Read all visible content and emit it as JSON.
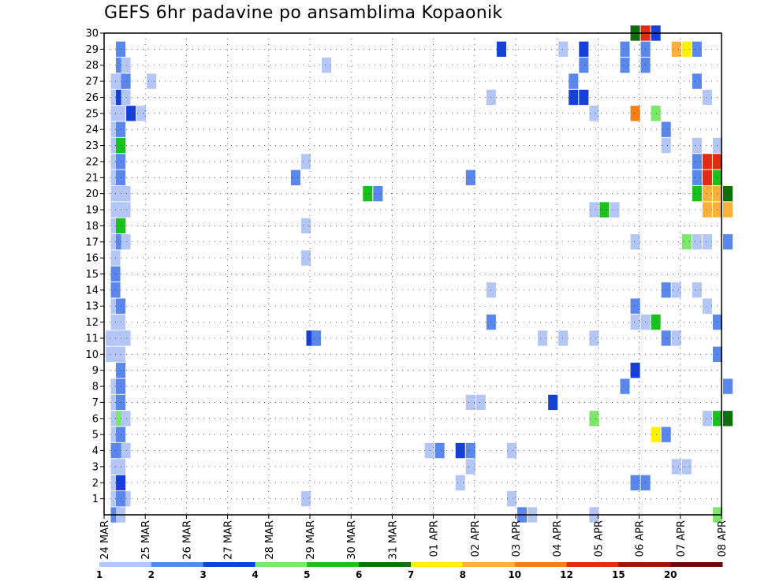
{
  "chart_data": {
    "type": "heatmap",
    "title": "GEFS 6hr padavine po ansamblima Kopaonik",
    "xlabel": "",
    "ylabel": "",
    "x_ticks": [
      "24 MAR",
      "25 MAR",
      "26 MAR",
      "27 MAR",
      "28 MAR",
      "29 MAR",
      "30 MAR",
      "31 MAR",
      "01 APR",
      "02 APR",
      "03 APR",
      "04 APR",
      "05 APR",
      "06 APR",
      "07 APR",
      "08 APR"
    ],
    "y_ticks": [
      "1",
      "2",
      "3",
      "4",
      "5",
      "6",
      "7",
      "8",
      "9",
      "10",
      "11",
      "12",
      "13",
      "14",
      "15",
      "16",
      "17",
      "18",
      "19",
      "20",
      "21",
      "22",
      "23",
      "24",
      "25",
      "26",
      "27",
      "28",
      "29",
      "30"
    ],
    "x_range": [
      0,
      60
    ],
    "y_range": [
      0,
      30
    ],
    "x_step_hours": 6,
    "grid": true,
    "color_levels": [
      "1",
      "2",
      "3",
      "4",
      "5",
      "6",
      "7",
      "8",
      "10",
      "12",
      "15",
      "20"
    ],
    "colors": [
      "#b3c6f5",
      "#5a87ec",
      "#1540d8",
      "#7ce86a",
      "#1cc01c",
      "#0d700d",
      "#fff200",
      "#fbb03b",
      "#f57f17",
      "#e32b13",
      "#a31212",
      "#6a0a0a"
    ],
    "cells": [
      [
        0.5,
        0,
        2
      ],
      [
        1,
        0,
        1
      ],
      [
        0.5,
        1,
        2
      ],
      [
        1,
        1,
        1
      ],
      [
        0.5,
        1,
        1
      ],
      [
        1,
        1,
        1
      ],
      [
        1.5,
        1,
        1
      ],
      [
        0.5,
        2,
        1
      ],
      [
        0.5,
        3,
        1
      ],
      [
        0.5,
        4,
        2
      ],
      [
        0.5,
        5,
        1
      ],
      [
        0.5,
        6,
        1
      ],
      [
        0.5,
        7,
        1
      ],
      [
        0.5,
        8,
        1
      ],
      [
        0,
        10,
        1
      ],
      [
        0.5,
        10,
        1
      ],
      [
        0,
        11,
        1
      ],
      [
        0.5,
        11,
        1
      ],
      [
        0.5,
        12,
        1
      ],
      [
        0.5,
        13,
        1
      ],
      [
        0.5,
        14,
        2
      ],
      [
        0.5,
        15,
        2
      ],
      [
        0.5,
        16,
        1
      ],
      [
        0.5,
        17,
        1
      ],
      [
        0.5,
        18,
        1
      ],
      [
        0.5,
        19,
        1
      ],
      [
        0.5,
        20,
        1
      ],
      [
        0.5,
        21,
        1
      ],
      [
        0.5,
        22,
        1
      ],
      [
        0.5,
        23,
        1
      ],
      [
        0.5,
        24,
        1
      ],
      [
        0.5,
        25,
        1
      ],
      [
        0.5,
        26,
        1
      ],
      [
        0.5,
        27,
        1
      ],
      [
        1,
        1,
        2
      ],
      [
        1,
        2,
        3
      ],
      [
        1,
        3,
        1
      ],
      [
        1,
        4,
        2
      ],
      [
        1,
        5,
        2
      ],
      [
        1,
        6,
        4
      ],
      [
        1,
        7,
        2
      ],
      [
        1,
        8,
        2
      ],
      [
        1,
        9,
        2
      ],
      [
        1,
        10,
        1
      ],
      [
        1,
        11,
        1
      ],
      [
        1,
        12,
        1
      ],
      [
        1,
        13,
        2
      ],
      [
        1,
        17,
        2
      ],
      [
        1,
        18,
        5
      ],
      [
        1,
        19,
        1
      ],
      [
        1,
        20,
        1
      ],
      [
        1,
        21,
        2
      ],
      [
        1,
        22,
        2
      ],
      [
        1,
        23,
        5
      ],
      [
        1,
        24,
        2
      ],
      [
        1,
        25,
        1
      ],
      [
        1,
        26,
        3
      ],
      [
        1,
        27,
        1
      ],
      [
        1,
        28,
        2
      ],
      [
        1,
        29,
        2
      ],
      [
        1.5,
        4,
        1
      ],
      [
        1.5,
        6,
        1
      ],
      [
        1.5,
        11,
        1
      ],
      [
        1.5,
        17,
        1
      ],
      [
        1.5,
        19,
        1
      ],
      [
        1.5,
        20,
        1
      ],
      [
        1.5,
        26,
        1
      ],
      [
        1.5,
        27,
        2
      ],
      [
        1.5,
        28,
        1
      ],
      [
        2,
        25,
        3
      ],
      [
        3,
        25,
        1
      ],
      [
        4,
        27,
        1
      ],
      [
        18,
        21,
        2
      ],
      [
        19,
        22,
        1
      ],
      [
        19,
        18,
        1
      ],
      [
        19,
        16,
        1
      ],
      [
        19,
        1,
        1
      ],
      [
        19.5,
        11,
        3
      ],
      [
        20,
        11,
        2
      ],
      [
        21,
        28,
        1
      ],
      [
        25,
        20,
        5
      ],
      [
        26,
        20,
        2
      ],
      [
        31,
        4,
        1
      ],
      [
        32,
        4,
        2
      ],
      [
        34,
        4,
        3
      ],
      [
        35,
        4,
        2
      ],
      [
        34,
        2,
        1
      ],
      [
        35,
        3,
        1
      ],
      [
        35,
        7,
        1
      ],
      [
        36,
        7,
        1
      ],
      [
        35,
        21,
        2
      ],
      [
        37,
        12,
        2
      ],
      [
        37,
        14,
        1
      ],
      [
        37,
        26,
        1
      ],
      [
        38,
        29,
        3
      ],
      [
        39,
        1,
        1
      ],
      [
        39,
        4,
        1
      ],
      [
        40,
        0,
        2
      ],
      [
        41,
        0,
        1
      ],
      [
        42,
        11,
        1
      ],
      [
        43,
        7,
        3
      ],
      [
        44,
        11,
        1
      ],
      [
        44,
        29,
        1
      ],
      [
        45,
        26,
        3
      ],
      [
        46,
        26,
        3
      ],
      [
        45,
        27,
        2
      ],
      [
        46,
        28,
        2
      ],
      [
        46,
        29,
        3
      ],
      [
        47,
        11,
        1
      ],
      [
        47,
        19,
        1
      ],
      [
        47,
        25,
        1
      ],
      [
        47,
        6,
        4
      ],
      [
        47,
        0,
        1
      ],
      [
        48,
        19,
        5
      ],
      [
        49,
        19,
        1
      ],
      [
        50,
        8,
        2
      ],
      [
        50,
        28,
        2
      ],
      [
        50,
        29,
        2
      ],
      [
        51,
        2,
        2
      ],
      [
        52,
        2,
        2
      ],
      [
        51,
        9,
        3
      ],
      [
        51,
        12,
        1
      ],
      [
        51,
        13,
        2
      ],
      [
        51,
        17,
        1
      ],
      [
        51,
        25,
        9
      ],
      [
        51,
        30,
        6
      ],
      [
        52,
        30,
        10
      ],
      [
        52,
        12,
        1
      ],
      [
        52,
        28,
        2
      ],
      [
        52,
        29,
        2
      ],
      [
        53,
        5,
        7
      ],
      [
        53,
        12,
        5
      ],
      [
        53,
        25,
        4
      ],
      [
        53,
        25,
        4
      ],
      [
        53,
        30,
        3
      ],
      [
        54,
        11,
        2
      ],
      [
        54,
        14,
        2
      ],
      [
        54,
        23,
        1
      ],
      [
        54,
        24,
        2
      ],
      [
        54,
        5,
        2
      ],
      [
        55,
        3,
        1
      ],
      [
        55,
        11,
        1
      ],
      [
        55,
        14,
        1
      ],
      [
        55,
        29,
        8
      ],
      [
        56,
        3,
        1
      ],
      [
        56,
        17,
        4
      ],
      [
        56,
        29,
        7
      ],
      [
        57,
        14,
        1
      ],
      [
        57,
        17,
        1
      ],
      [
        57,
        20,
        5
      ],
      [
        57,
        21,
        2
      ],
      [
        57,
        22,
        2
      ],
      [
        57,
        23,
        1
      ],
      [
        57,
        27,
        2
      ],
      [
        57,
        29,
        2
      ],
      [
        58,
        6,
        1
      ],
      [
        58,
        13,
        1
      ],
      [
        58,
        17,
        1
      ],
      [
        58,
        19,
        8
      ],
      [
        58,
        20,
        8
      ],
      [
        58,
        21,
        10
      ],
      [
        58,
        22,
        10
      ],
      [
        58,
        26,
        1
      ],
      [
        59,
        6,
        5
      ],
      [
        59,
        10,
        2
      ],
      [
        59,
        12,
        2
      ],
      [
        59,
        0,
        4
      ],
      [
        59,
        19,
        8
      ],
      [
        59,
        20,
        8
      ],
      [
        59,
        21,
        5
      ],
      [
        59,
        22,
        10
      ],
      [
        59,
        23,
        1
      ],
      [
        60,
        6,
        6
      ],
      [
        60,
        8,
        2
      ],
      [
        60,
        17,
        2
      ],
      [
        60,
        20,
        6
      ],
      [
        60,
        19,
        8
      ]
    ]
  }
}
